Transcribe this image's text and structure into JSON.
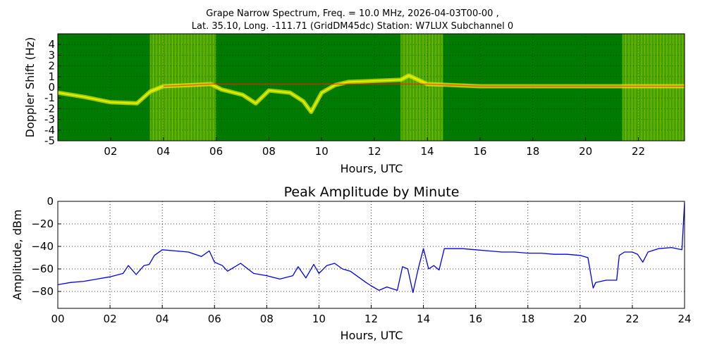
{
  "chart_data": [
    {
      "type": "heatmap",
      "title_line1": "Grape Narrow Spectrum, Freq. = 10.0 MHz, 2026-04-03T00-00 ,",
      "title_line2": "Lat.  35.10, Long. -111.71 (GridDM45dc) Station: W7LUX Subchannel 0",
      "xlabel": "Hours, UTC",
      "ylabel": "Doppler Shift (Hz)",
      "xlim": [
        0,
        23.75
      ],
      "ylim": [
        -5,
        5
      ],
      "x_ticks": [
        2,
        4,
        6,
        8,
        10,
        12,
        14,
        16,
        18,
        20,
        22
      ],
      "x_tick_labels": [
        "02",
        "04",
        "06",
        "08",
        "10",
        "12",
        "14",
        "16",
        "18",
        "20",
        "22"
      ],
      "y_ticks": [
        4,
        3,
        2,
        1,
        0,
        -1,
        -2,
        -3,
        -4,
        -5
      ],
      "y_tick_labels": [
        "4",
        "3",
        "2",
        "1",
        "0",
        "-1",
        "-2",
        "-3",
        "-4",
        "-5"
      ],
      "grid": true,
      "colors": {
        "background": "#007a00",
        "noise": "#5cb000",
        "signal": "#e6ef00",
        "peak": "#ff2000"
      },
      "noisy_bands_hours": [
        [
          3.5,
          6.0
        ],
        [
          13.0,
          14.6
        ],
        [
          21.4,
          23.75
        ]
      ],
      "doppler_trace": {
        "hours": [
          0,
          1,
          2,
          3,
          3.5,
          4,
          5,
          5.8,
          6.2,
          7,
          7.5,
          8,
          8.8,
          9.3,
          9.6,
          10,
          10.5,
          11,
          12,
          13,
          13.3,
          14,
          15,
          16,
          17,
          18,
          19,
          20,
          21,
          22,
          23,
          23.75
        ],
        "shift_hz": [
          -0.5,
          -0.9,
          -1.4,
          -1.5,
          -0.4,
          0.1,
          0.2,
          0.3,
          -0.2,
          -0.7,
          -1.5,
          -0.3,
          -0.5,
          -1.3,
          -2.3,
          -0.5,
          0.2,
          0.5,
          0.6,
          0.7,
          1.1,
          0.3,
          0.2,
          0.1,
          0.1,
          0.1,
          0.1,
          0.1,
          0.1,
          0.1,
          0.1,
          0.1
        ]
      }
    },
    {
      "type": "line",
      "title": "Peak Amplitude by Minute",
      "xlabel": "Hours, UTC",
      "ylabel": "Amplitude, dBm",
      "xlim": [
        0,
        24
      ],
      "ylim": [
        -95,
        0
      ],
      "x_ticks": [
        0,
        2,
        4,
        6,
        8,
        10,
        12,
        14,
        16,
        18,
        20,
        22,
        24
      ],
      "x_tick_labels": [
        "00",
        "02",
        "04",
        "06",
        "08",
        "10",
        "12",
        "14",
        "16",
        "18",
        "20",
        "22",
        "24"
      ],
      "y_ticks": [
        0,
        -20,
        -40,
        -60,
        -80
      ],
      "y_tick_labels": [
        "0",
        "−20",
        "−40",
        "−60",
        "−80"
      ],
      "grid": true,
      "line_color": "#0000ee",
      "x": [
        0,
        0.5,
        1,
        1.5,
        2,
        2.5,
        2.7,
        3,
        3.3,
        3.5,
        3.7,
        4,
        4.5,
        5,
        5.5,
        5.8,
        6,
        6.3,
        6.5,
        7,
        7.5,
        8,
        8.5,
        9,
        9.2,
        9.5,
        9.8,
        10,
        10.3,
        10.6,
        10.9,
        11.2,
        11.5,
        11.8,
        12,
        12.3,
        12.6,
        13,
        13.2,
        13.4,
        13.6,
        13.8,
        14,
        14.2,
        14.4,
        14.6,
        14.8,
        15,
        15.5,
        16,
        16.5,
        17,
        17.5,
        18,
        18.5,
        19,
        19.5,
        20,
        20.3,
        20.5,
        20.6,
        21,
        21.4,
        21.5,
        21.7,
        22,
        22.2,
        22.4,
        22.6,
        23,
        23.5,
        23.9,
        24
      ],
      "y": [
        -74,
        -72,
        -71,
        -69,
        -67,
        -64,
        -57,
        -65,
        -57,
        -56,
        -48,
        -43,
        -44,
        -45,
        -49,
        -44,
        -54,
        -57,
        -62,
        -55,
        -64,
        -66,
        -69,
        -66,
        -58,
        -68,
        -56,
        -64,
        -57,
        -55,
        -60,
        -62,
        -67,
        -72,
        -75,
        -79,
        -76,
        -79,
        -58,
        -60,
        -81,
        -60,
        -42,
        -60,
        -57,
        -61,
        -42,
        -42,
        -42,
        -43,
        -44,
        -45,
        -45,
        -46,
        -46,
        -47,
        -47,
        -48,
        -50,
        -77,
        -72,
        -70,
        -70,
        -48,
        -45,
        -45,
        -47,
        -54,
        -45,
        -42,
        -41,
        -43,
        -1
      ]
    }
  ]
}
